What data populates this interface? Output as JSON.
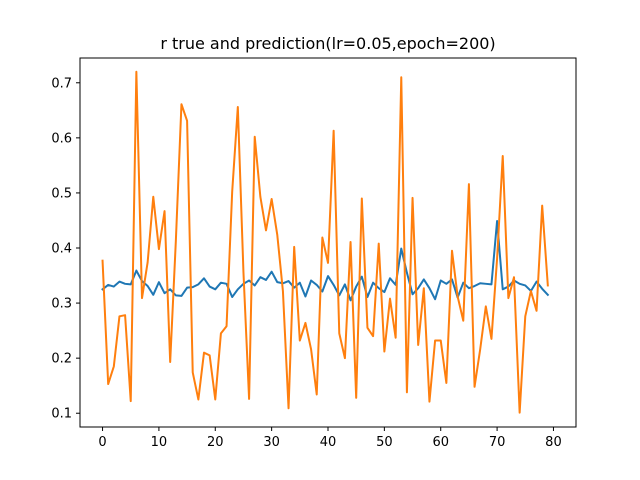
{
  "chart_data": {
    "type": "line",
    "title": "r true and prediction(lr=0.05,epoch=200)",
    "xlabel": "",
    "ylabel": "",
    "xlim": [
      -4,
      84
    ],
    "ylim": [
      0.075,
      0.745
    ],
    "x_ticks": [
      0,
      10,
      20,
      30,
      40,
      50,
      60,
      70,
      80
    ],
    "y_ticks": [
      0.1,
      0.2,
      0.3,
      0.4,
      0.5,
      0.6,
      0.7
    ],
    "x_tick_labels": [
      "0",
      "10",
      "20",
      "30",
      "40",
      "50",
      "60",
      "70",
      "80"
    ],
    "y_tick_labels": [
      "0.1",
      "0.2",
      "0.3",
      "0.4",
      "0.5",
      "0.6",
      "0.7"
    ],
    "grid": false,
    "legend": "none",
    "series": [
      {
        "color": "#1f77b4",
        "x": [
          0,
          1,
          2,
          3,
          4,
          5,
          6,
          7,
          8,
          9,
          10,
          11,
          12,
          13,
          14,
          15,
          16,
          17,
          18,
          19,
          20,
          21,
          22,
          23,
          24,
          25,
          26,
          27,
          28,
          29,
          30,
          31,
          32,
          33,
          34,
          35,
          36,
          37,
          38,
          39,
          40,
          41,
          42,
          43,
          44,
          45,
          46,
          47,
          48,
          49,
          50,
          51,
          52,
          53,
          54,
          55,
          56,
          57,
          58,
          59,
          60,
          61,
          62,
          63,
          64,
          65,
          66,
          67,
          68,
          69,
          70,
          71,
          72,
          73,
          74,
          75,
          76,
          77,
          78,
          79
        ],
        "values": [
          0.325,
          0.333,
          0.33,
          0.339,
          0.335,
          0.334,
          0.359,
          0.34,
          0.331,
          0.315,
          0.338,
          0.318,
          0.325,
          0.314,
          0.313,
          0.328,
          0.329,
          0.334,
          0.345,
          0.33,
          0.325,
          0.337,
          0.335,
          0.311,
          0.325,
          0.335,
          0.341,
          0.332,
          0.347,
          0.342,
          0.357,
          0.338,
          0.336,
          0.34,
          0.328,
          0.337,
          0.312,
          0.341,
          0.333,
          0.321,
          0.349,
          0.333,
          0.314,
          0.334,
          0.305,
          0.33,
          0.348,
          0.311,
          0.337,
          0.327,
          0.32,
          0.345,
          0.333,
          0.399,
          0.355,
          0.316,
          0.327,
          0.343,
          0.327,
          0.307,
          0.341,
          0.335,
          0.343,
          0.31,
          0.337,
          0.327,
          0.331,
          0.336,
          0.335,
          0.334,
          0.449,
          0.325,
          0.33,
          0.341,
          0.335,
          0.332,
          0.322,
          0.339,
          0.326,
          0.315
        ]
      },
      {
        "color": "#ff7f0e",
        "x": [
          0,
          1,
          2,
          3,
          4,
          5,
          6,
          7,
          8,
          9,
          10,
          11,
          12,
          13,
          14,
          15,
          16,
          17,
          18,
          19,
          20,
          21,
          22,
          23,
          24,
          25,
          26,
          27,
          28,
          29,
          30,
          31,
          32,
          33,
          34,
          35,
          36,
          37,
          38,
          39,
          40,
          41,
          42,
          43,
          44,
          45,
          46,
          47,
          48,
          49,
          50,
          51,
          52,
          53,
          54,
          55,
          56,
          57,
          58,
          59,
          60,
          61,
          62,
          63,
          64,
          65,
          66,
          67,
          68,
          69,
          70,
          71,
          72,
          73,
          74,
          75,
          76,
          77,
          78,
          79
        ],
        "values": [
          0.377,
          0.153,
          0.185,
          0.276,
          0.278,
          0.122,
          0.72,
          0.309,
          0.374,
          0.493,
          0.398,
          0.467,
          0.193,
          0.412,
          0.661,
          0.631,
          0.174,
          0.125,
          0.21,
          0.205,
          0.125,
          0.245,
          0.258,
          0.502,
          0.656,
          0.356,
          0.126,
          0.602,
          0.493,
          0.432,
          0.489,
          0.424,
          0.322,
          0.109,
          0.402,
          0.232,
          0.264,
          0.216,
          0.134,
          0.419,
          0.373,
          0.613,
          0.245,
          0.2,
          0.411,
          0.128,
          0.49,
          0.255,
          0.24,
          0.408,
          0.212,
          0.308,
          0.237,
          0.71,
          0.138,
          0.491,
          0.224,
          0.327,
          0.121,
          0.232,
          0.232,
          0.155,
          0.395,
          0.312,
          0.268,
          0.516,
          0.148,
          0.216,
          0.294,
          0.235,
          0.381,
          0.567,
          0.309,
          0.347,
          0.101,
          0.276,
          0.322,
          0.286,
          0.477,
          0.332
        ]
      }
    ]
  }
}
